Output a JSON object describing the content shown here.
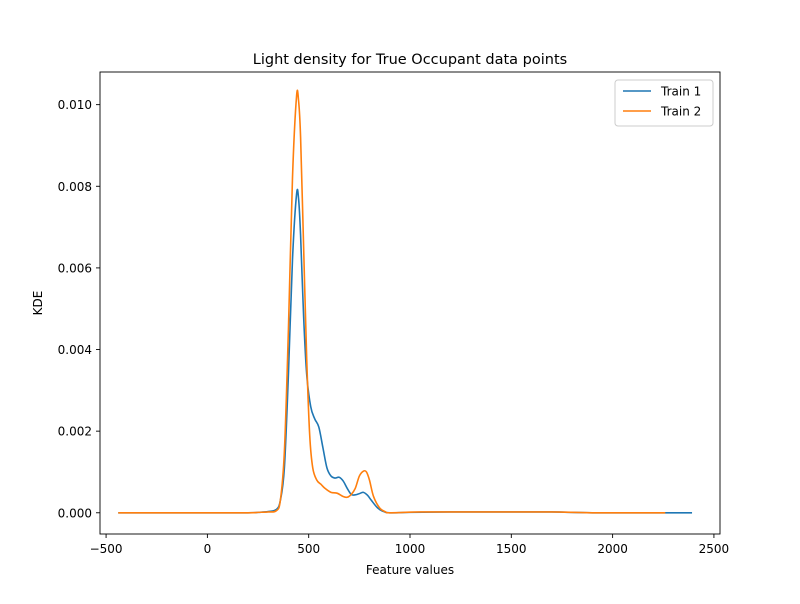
{
  "chart_data": {
    "type": "line",
    "title": "Light density for True Occupant data points",
    "xlabel": "Feature values",
    "ylabel": "KDE",
    "xlim": [
      -530,
      2530
    ],
    "ylim": [
      -0.00052,
      0.0108
    ],
    "x_ticks": [
      -500,
      0,
      500,
      1000,
      1500,
      2000,
      2500
    ],
    "x_tick_labels": [
      "−500",
      "0",
      "500",
      "1000",
      "1500",
      "2000",
      "2500"
    ],
    "y_ticks": [
      0.0,
      0.002,
      0.004,
      0.006,
      0.008,
      0.01
    ],
    "y_tick_labels": [
      "0.000",
      "0.002",
      "0.004",
      "0.006",
      "0.008",
      "0.010"
    ],
    "grid": false,
    "legend_position": "top-right",
    "series": [
      {
        "name": "Train 1",
        "color": "#1f77b4",
        "points": [
          [
            -440,
            0.0
          ],
          [
            0,
            0.0
          ],
          [
            200,
            0.0
          ],
          [
            250,
            1e-05
          ],
          [
            300,
            3e-05
          ],
          [
            340,
            8e-05
          ],
          [
            360,
            0.0003
          ],
          [
            380,
            0.0011
          ],
          [
            400,
            0.0034
          ],
          [
            420,
            0.0062
          ],
          [
            440,
            0.0078
          ],
          [
            450,
            0.0077
          ],
          [
            460,
            0.0068
          ],
          [
            475,
            0.0048
          ],
          [
            490,
            0.0034
          ],
          [
            510,
            0.0026
          ],
          [
            530,
            0.0023
          ],
          [
            550,
            0.0021
          ],
          [
            570,
            0.0016
          ],
          [
            590,
            0.0011
          ],
          [
            610,
            0.0009
          ],
          [
            630,
            0.00085
          ],
          [
            650,
            0.00087
          ],
          [
            670,
            0.00078
          ],
          [
            690,
            0.0006
          ],
          [
            710,
            0.00045
          ],
          [
            730,
            0.00044
          ],
          [
            750,
            0.00047
          ],
          [
            770,
            0.0005
          ],
          [
            790,
            0.00043
          ],
          [
            810,
            0.0003
          ],
          [
            840,
            0.00012
          ],
          [
            870,
            3e-05
          ],
          [
            900,
            0.0
          ],
          [
            1000,
            1e-05
          ],
          [
            1200,
            2e-05
          ],
          [
            1400,
            2e-05
          ],
          [
            1700,
            2e-05
          ],
          [
            1900,
            0.0
          ],
          [
            2392,
            0.0
          ]
        ]
      },
      {
        "name": "Train 2",
        "color": "#ff7f0e",
        "points": [
          [
            -440,
            0.0
          ],
          [
            0,
            0.0
          ],
          [
            200,
            0.0
          ],
          [
            250,
            1e-05
          ],
          [
            300,
            2e-05
          ],
          [
            340,
            5e-05
          ],
          [
            360,
            0.0003
          ],
          [
            380,
            0.0015
          ],
          [
            400,
            0.0045
          ],
          [
            420,
            0.0082
          ],
          [
            440,
            0.0102
          ],
          [
            450,
            0.0101
          ],
          [
            460,
            0.0092
          ],
          [
            475,
            0.0065
          ],
          [
            490,
            0.0038
          ],
          [
            505,
            0.0019
          ],
          [
            520,
            0.0011
          ],
          [
            540,
            0.0008
          ],
          [
            560,
            0.0007
          ],
          [
            580,
            0.0006
          ],
          [
            610,
            0.0005
          ],
          [
            640,
            0.00048
          ],
          [
            670,
            0.0004
          ],
          [
            690,
            0.00038
          ],
          [
            710,
            0.00045
          ],
          [
            730,
            0.0006
          ],
          [
            750,
            0.0009
          ],
          [
            770,
            0.00102
          ],
          [
            785,
            0.001
          ],
          [
            800,
            0.0008
          ],
          [
            820,
            0.0004
          ],
          [
            850,
            0.00012
          ],
          [
            880,
            2e-05
          ],
          [
            900,
            0.0
          ],
          [
            1050,
            2e-05
          ],
          [
            1200,
            2e-05
          ],
          [
            1400,
            2e-05
          ],
          [
            1700,
            2e-05
          ],
          [
            1900,
            0.0
          ],
          [
            2260,
            0.0
          ]
        ]
      }
    ]
  }
}
